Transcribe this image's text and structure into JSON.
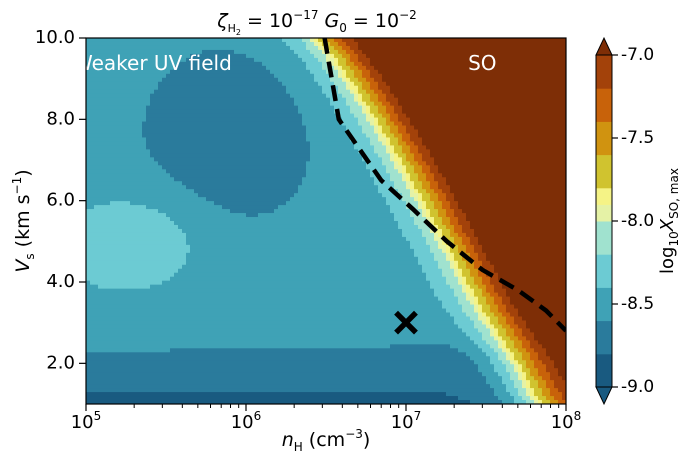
{
  "chart_data": {
    "type": "heatmap",
    "title": {
      "zeta": "ζ",
      "zeta_sub": "H",
      "zeta_sub2": "2",
      "mid": " = 10",
      "exp1": "−17",
      "g": " G",
      "g_sub": "0",
      "mid2": " = 10",
      "exp2": "−2"
    },
    "xlabel": {
      "pre": "n",
      "sub": "H",
      "post": " (cm",
      "sup": "−3",
      "close": ")"
    },
    "ylabel": {
      "pre": "V",
      "sub": "s",
      "post": " (km s",
      "sup": "−1",
      "close": ")"
    },
    "x_scale": "log",
    "xlim": [
      100000,
      100000000
    ],
    "ylim": [
      1.0,
      10.0
    ],
    "x_ticks": [
      {
        "value": 100000,
        "base": "10",
        "exp": "5"
      },
      {
        "value": 1000000,
        "base": "10",
        "exp": "6"
      },
      {
        "value": 10000000,
        "base": "10",
        "exp": "7"
      },
      {
        "value": 100000000,
        "base": "10",
        "exp": "8"
      }
    ],
    "y_ticks": [
      {
        "value": 2.0,
        "label": "2.0"
      },
      {
        "value": 4.0,
        "label": "4.0"
      },
      {
        "value": 6.0,
        "label": "6.0"
      },
      {
        "value": 8.0,
        "label": "8.0"
      },
      {
        "value": 10.0,
        "label": "10.0"
      }
    ],
    "annotations": [
      {
        "text": "Weaker UV field",
        "x": 260000,
        "y": 9.35
      },
      {
        "text": "SO",
        "x": 30000000,
        "y": 9.35
      }
    ],
    "marker": {
      "symbol": "X",
      "x": 10000000,
      "y": 3.0,
      "color": "#000000"
    },
    "dashed_contour": {
      "color": "#000000",
      "points": [
        [
          3100000,
          10.0
        ],
        [
          3800000,
          8.0
        ],
        [
          7000000,
          6.5
        ],
        [
          11000000,
          5.8
        ],
        [
          18000000,
          5.0
        ],
        [
          30000000,
          4.3
        ],
        [
          50000000,
          3.8
        ],
        [
          75000000,
          3.3
        ],
        [
          100000000,
          2.8
        ]
      ]
    },
    "colorbar": {
      "label": {
        "pre": "log",
        "sub1": "10",
        "var": "X",
        "sub2": "SO, max"
      },
      "range": [
        -9.0,
        -7.0
      ],
      "extend": "both",
      "levels": [
        -9.0,
        -8.8,
        -8.6,
        -8.4,
        -8.2,
        -8.0,
        -7.9,
        -7.8,
        -7.6,
        -7.4,
        -7.2,
        -7.0
      ],
      "colors": [
        "#195a80",
        "#2a7b9c",
        "#3fa2b6",
        "#6ccbd3",
        "#a0e2cf",
        "#e5f2a6",
        "#f5f386",
        "#d0c32f",
        "#d09310",
        "#c8620a",
        "#a3420a",
        "#7e2e06"
      ],
      "under_color": "#195a80",
      "over_color": "#7e2e06",
      "ticks": [
        {
          "value": -9.0,
          "label": "-9.0"
        },
        {
          "value": -8.5,
          "label": "-8.5"
        },
        {
          "value": -8.0,
          "label": "-8.0"
        },
        {
          "value": -7.5,
          "label": "-7.5"
        },
        {
          "value": -7.0,
          "label": "-7.0"
        }
      ]
    }
  }
}
